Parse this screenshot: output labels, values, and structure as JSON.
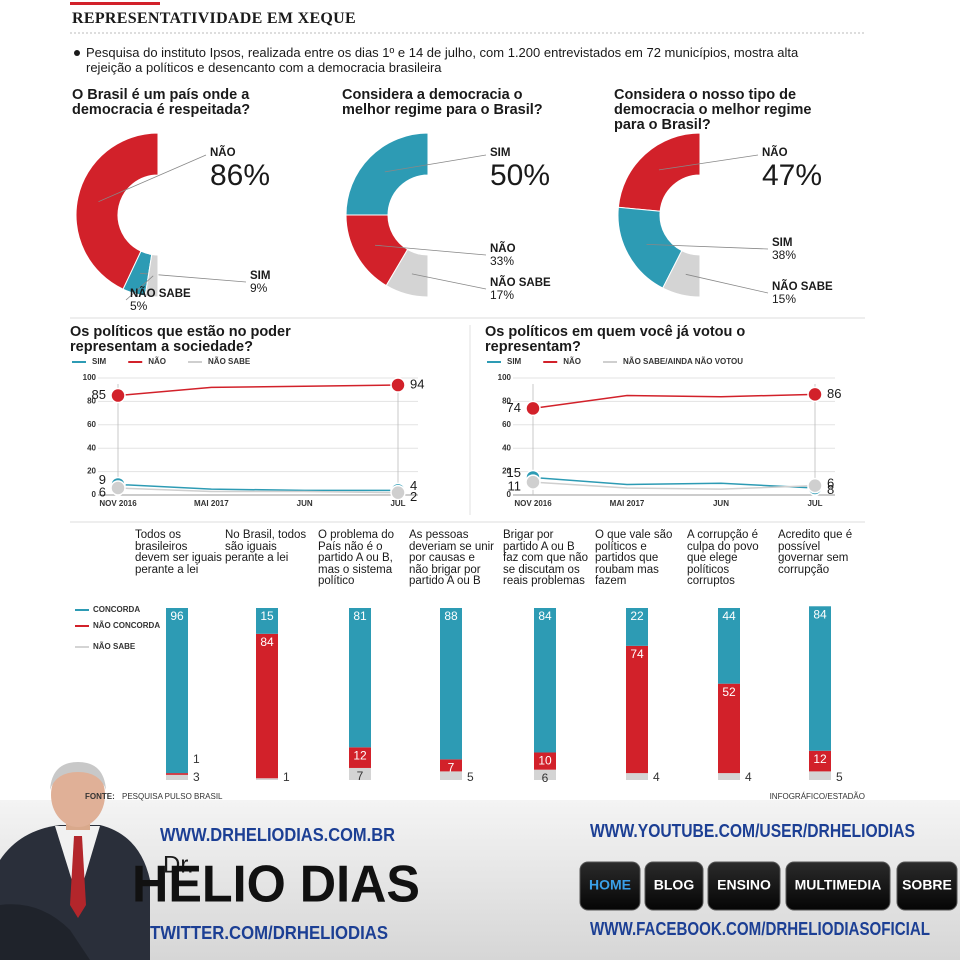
{
  "header": {
    "title": "REPRESENTATIVIDADE EM XEQUE",
    "subtitle": "Pesquisa do instituto Ipsos, realizada entre os dias 1º e 14 de julho, com 1.200 entrevistados em 72 municípios, mostra alta rejeição a políticos e desencanto com a democracia brasileira"
  },
  "chart_data": [
    {
      "type": "donut",
      "title": "O Brasil é um país onde a democracia é respeitada?",
      "categories": [
        "NÃO",
        "SIM",
        "NÃO SABE"
      ],
      "values": [
        86,
        9,
        5
      ],
      "value_labels": [
        "86%",
        "9%",
        "5%"
      ],
      "colors": [
        "#d2212a",
        "#2d9bb4",
        "#d4d4d4"
      ]
    },
    {
      "type": "donut",
      "title": "Considera a democracia o melhor regime para o Brasil?",
      "categories": [
        "SIM",
        "NÃO",
        "NÃO SABE"
      ],
      "values": [
        50,
        33,
        17
      ],
      "value_labels": [
        "50%",
        "33%",
        "17%"
      ],
      "colors": [
        "#2d9bb4",
        "#d2212a",
        "#d4d4d4"
      ]
    },
    {
      "type": "donut",
      "title": "Considera o nosso tipo de democracia o melhor regime para o Brasil?",
      "categories": [
        "NÃO",
        "SIM",
        "NÃO SABE"
      ],
      "values": [
        47,
        38,
        15
      ],
      "value_labels": [
        "47%",
        "38%",
        "15%"
      ],
      "colors": [
        "#d2212a",
        "#2d9bb4",
        "#d4d4d4"
      ]
    },
    {
      "type": "line",
      "title": "Os políticos que estão no poder representam a sociedade?",
      "categories": [
        "NOV 2016",
        "MAI 2017",
        "JUN",
        "JUL"
      ],
      "series": [
        {
          "name": "SIM",
          "color": "#2d9bb4",
          "values": [
            9,
            5,
            4,
            4
          ]
        },
        {
          "name": "NÃO",
          "color": "#d2212a",
          "values": [
            85,
            92,
            93,
            94
          ]
        },
        {
          "name": "NÃO SABE",
          "color": "#cfcfcf",
          "values": [
            6,
            3,
            3,
            2
          ]
        }
      ],
      "ylim": [
        0,
        100
      ],
      "yticks": [
        0,
        20,
        40,
        60,
        80,
        100
      ],
      "grid": true
    },
    {
      "type": "line",
      "title": "Os políticos em quem você já votou o representam?",
      "categories": [
        "NOV 2016",
        "MAI 2017",
        "JUN",
        "JUL"
      ],
      "series": [
        {
          "name": "SIM",
          "color": "#2d9bb4",
          "values": [
            15,
            9,
            10,
            6
          ]
        },
        {
          "name": "NÃO",
          "color": "#d2212a",
          "values": [
            74,
            85,
            84,
            86
          ]
        },
        {
          "name": "NÃO SABE/AINDA NÃO VOTOU",
          "color": "#cfcfcf",
          "values": [
            11,
            6,
            5,
            8
          ]
        }
      ],
      "ylim": [
        0,
        100
      ],
      "yticks": [
        0,
        20,
        40,
        60,
        80,
        100
      ],
      "grid": true
    },
    {
      "type": "stacked-bar",
      "categories": [
        "Todos os brasileiros devem ser iguais perante a lei",
        "No Brasil, todos são iguais perante a lei",
        "O problema do País não é o partido A ou B, mas o sistema político",
        "As pessoas deveriam se unir por causas e não brigar por partido A ou B",
        "Brigar por partido A ou B faz com que não se discutam os reais problemas",
        "O que vale são políticos e partidos que roubam mas fazem",
        "A corrupção é culpa do povo que elege políticos corruptos",
        "Acredito que é possível governar sem corrupção"
      ],
      "series": [
        {
          "name": "CONCORDA",
          "color": "#2d9bb4",
          "values": [
            96,
            15,
            81,
            88,
            84,
            22,
            44,
            84
          ]
        },
        {
          "name": "NÃO CONCORDA",
          "color": "#d2212a",
          "values": [
            1,
            84,
            12,
            7,
            10,
            74,
            52,
            12
          ]
        },
        {
          "name": "NÃO SABE",
          "color": "#d4d4d4",
          "values": [
            3,
            1,
            7,
            5,
            6,
            4,
            4,
            5
          ]
        }
      ]
    }
  ],
  "source": {
    "label": "FONTE:",
    "text": "PESQUISA PULSO BRASIL",
    "credit": "INFOGRÁFICO/ESTADÃO"
  },
  "banner": {
    "site": "WWW.DRHELIODIAS.COM.BR",
    "prefix": "Dr.",
    "name": "HELIO DIAS",
    "twitter": "TWITTER.COM/DRHELIODIAS",
    "youtube": "WWW.YOUTUBE.COM/USER/DRHELIODIAS",
    "menu": [
      "HOME",
      "BLOG",
      "ENSINO",
      "MULTIMEDIA",
      "SOBRE"
    ],
    "facebook": "WWW.FACEBOOK.COM/DRHELIODIASOFICIAL"
  }
}
